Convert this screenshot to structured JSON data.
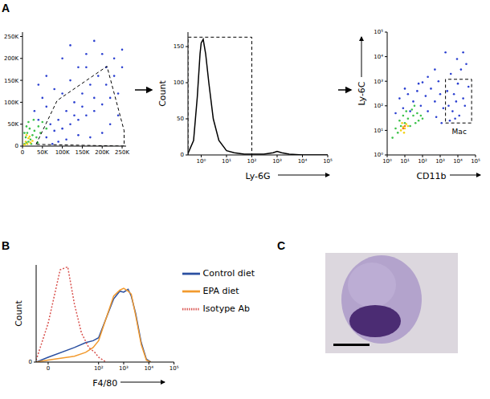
{
  "chart_data": [
    {
      "panel": "A",
      "type": "scatter",
      "xlim": [
        0,
        260000
      ],
      "ylim": [
        0,
        260000
      ],
      "xticks": [
        0,
        {
          "value": 50000,
          "label": "50K"
        },
        {
          "value": 100000,
          "label": "100K"
        },
        {
          "value": 150000,
          "label": "150K"
        },
        {
          "value": 200000,
          "label": "200K"
        },
        {
          "value": 250000,
          "label": "250K"
        }
      ],
      "yticks": [
        0,
        {
          "value": 50000,
          "label": "50K"
        },
        {
          "value": 100000,
          "label": "100K"
        },
        {
          "value": 150000,
          "label": "150K"
        },
        {
          "value": 200000,
          "label": "200K"
        },
        {
          "value": 250000,
          "label": "250K"
        }
      ],
      "series": [
        {
          "color": "#2a3fd0",
          "x": [
            60000,
            80000,
            100000,
            120000,
            140000,
            160000,
            180000,
            200000,
            220000,
            240000,
            90000,
            110000,
            130000,
            150000,
            170000,
            190000,
            210000,
            230000,
            250000,
            70000,
            100000,
            120000,
            140000,
            160000,
            180000,
            60000,
            80000,
            40000,
            50000,
            30000,
            200000,
            220000,
            240000,
            170000,
            140000,
            110000,
            90000,
            75000,
            150000,
            180000,
            210000,
            230000,
            250000,
            130000,
            100000,
            120000,
            60000,
            40000,
            160000,
            200000
          ],
          "values": [
            20000,
            35000,
            40000,
            50000,
            60000,
            70000,
            80000,
            95000,
            110000,
            120000,
            60000,
            80000,
            100000,
            120000,
            140000,
            160000,
            180000,
            200000,
            220000,
            50000,
            120000,
            150000,
            180000,
            210000,
            240000,
            90000,
            130000,
            60000,
            110000,
            80000,
            30000,
            50000,
            70000,
            20000,
            25000,
            15000,
            10000,
            5000,
            90000,
            110000,
            140000,
            160000,
            180000,
            70000,
            200000,
            230000,
            160000,
            140000,
            180000,
            210000
          ]
        },
        {
          "color": "#3cc24a",
          "x": [
            5000,
            10000,
            15000,
            8000,
            12000,
            20000,
            25000,
            18000,
            30000,
            35000,
            40000,
            28000,
            45000,
            50000,
            15000,
            60000,
            22000,
            38000,
            5000,
            10000
          ],
          "values": [
            5000,
            8000,
            10000,
            20000,
            30000,
            15000,
            25000,
            40000,
            35000,
            20000,
            45000,
            60000,
            30000,
            55000,
            55000,
            40000,
            5000,
            8000,
            30000,
            45000
          ]
        },
        {
          "color": "#f2d21a",
          "x": [
            5000,
            8000,
            12000,
            15000,
            20000,
            10000,
            25000,
            18000
          ],
          "values": [
            3000,
            10000,
            5000,
            18000,
            8000,
            25000,
            12000,
            22000
          ]
        },
        {
          "type": "line",
          "line_style": "dashed",
          "color": "#000000",
          "x": [
            34000,
            87000,
            212000,
            255000,
            255000,
            34000
          ],
          "values": [
            4000,
            104000,
            182000,
            35000,
            0,
            4000
          ]
        }
      ]
    },
    {
      "type": "line",
      "x_label": "Ly-6G",
      "y_label": "Count",
      "log": "x",
      "xlim": [
        0.3,
        100000
      ],
      "ylim": [
        0,
        170
      ],
      "xticks": [
        {
          "value": 1,
          "label": "10⁰"
        },
        {
          "value": 10,
          "label": "10¹"
        },
        {
          "value": 100,
          "label": "10²"
        },
        {
          "value": 1000,
          "label": "10³"
        },
        {
          "value": 10000,
          "label": "10⁴"
        },
        {
          "value": 100000,
          "label": "10⁵"
        }
      ],
      "yticks": [
        0,
        50,
        100,
        150
      ],
      "series": [
        {
          "color": "#000000",
          "x": [
            0.3,
            0.5,
            0.7,
            0.9,
            1,
            1.2,
            1.5,
            2,
            3,
            5,
            10,
            20,
            50,
            100,
            300,
            700,
            1000,
            1500,
            3000,
            10000,
            100000
          ],
          "values": [
            2,
            20,
            80,
            140,
            155,
            160,
            140,
            100,
            50,
            20,
            6,
            3,
            1,
            1,
            1,
            3,
            5,
            3,
            1,
            0,
            0
          ]
        },
        {
          "line_style": "dashed",
          "color": "#000000",
          "x": [
            0.3,
            0.3,
            100,
            100
          ],
          "values": [
            0,
            163,
            163,
            0
          ]
        }
      ]
    },
    {
      "type": "scatter",
      "x_label": "CD11b",
      "y_label": "Ly-6C",
      "log": true,
      "xlim": [
        1,
        100000
      ],
      "ylim": [
        1,
        100000
      ],
      "xticks": [
        {
          "value": 1,
          "label": "10⁰"
        },
        {
          "value": 10,
          "label": "10¹"
        },
        {
          "value": 100,
          "label": "10²"
        },
        {
          "value": 1000,
          "label": "10³"
        },
        {
          "value": 10000,
          "label": "10⁴"
        },
        {
          "value": 100000,
          "label": "10⁵"
        }
      ],
      "yticks": [
        {
          "value": 1,
          "label": "10⁰"
        },
        {
          "value": 10,
          "label": "10¹"
        },
        {
          "value": 100,
          "label": "10²"
        },
        {
          "value": 1000,
          "label": "10³"
        },
        {
          "value": 10000,
          "label": "10⁴"
        },
        {
          "value": 100000,
          "label": "10⁵"
        }
      ],
      "annotations": [
        {
          "text": "Mac",
          "x": 12000,
          "y": 9
        }
      ],
      "series": [
        {
          "color": "#2a3fd0",
          "x": [
            3,
            5,
            8,
            15,
            20,
            30,
            50,
            80,
            100,
            150,
            200,
            300,
            500,
            800,
            1000,
            1500,
            2500,
            3000,
            4000,
            5000,
            6000,
            8000,
            10000,
            12000,
            15000,
            20000,
            25000,
            30000,
            40000,
            2000,
            500,
            200,
            60,
            10,
            7000,
            3500,
            1200,
            600,
            20000,
            9000
          ],
          "values": [
            50,
            200,
            80,
            300,
            60,
            150,
            400,
            100,
            900,
            250,
            60,
            500,
            150,
            1000,
            300,
            80,
            400,
            100,
            2000,
            60,
            300,
            150,
            800,
            40,
            3000,
            200,
            100,
            5000,
            600,
            15000,
            3000,
            1500,
            800,
            500,
            30,
            25,
            20,
            35,
            15000,
            8000
          ]
        },
        {
          "color": "#3cc24a",
          "x": [
            4,
            6,
            10,
            15,
            20,
            8,
            30,
            40,
            25,
            50,
            60,
            12,
            5,
            80,
            100,
            3,
            2,
            35
          ],
          "values": [
            8,
            15,
            20,
            30,
            15,
            40,
            40,
            20,
            70,
            50,
            25,
            60,
            25,
            40,
            30,
            12,
            5,
            100
          ]
        },
        {
          "color": "#f2d21a",
          "x": [
            6,
            8,
            10,
            12,
            7,
            15,
            9
          ],
          "values": [
            10,
            14,
            12,
            18,
            20,
            15,
            8
          ]
        },
        {
          "color": "#f07020",
          "x": [
            8,
            10
          ],
          "values": [
            12,
            15
          ]
        },
        {
          "type": "line",
          "line_style": "dashed",
          "color": "#000000",
          "x": [
            2000,
            60000,
            60000,
            2000,
            2000
          ],
          "values": [
            20,
            20,
            1200,
            1200,
            20
          ]
        }
      ]
    },
    {
      "panel": "B",
      "type": "line",
      "x_label": "F4/80",
      "y_label": "Count",
      "log": "x",
      "legend": "right",
      "xlim": [
        -2,
        100000
      ],
      "ylim": [
        0,
        100
      ],
      "xticks": [
        0,
        {
          "value": 100,
          "label": "10²"
        },
        {
          "value": 1000,
          "label": "10³"
        },
        {
          "value": 10000,
          "label": "10⁴"
        },
        {
          "value": 100000,
          "label": "10⁵"
        }
      ],
      "yticks": [
        0
      ],
      "series": [
        {
          "name": "Control diet",
          "color": "#2a4fa0",
          "x": [
            -2,
            0,
            10,
            30,
            60,
            100,
            200,
            400,
            700,
            1000,
            1500,
            2000,
            3000,
            5000,
            8000,
            12000
          ],
          "values": [
            0,
            5,
            15,
            20,
            22,
            25,
            45,
            65,
            73,
            72,
            75,
            68,
            50,
            20,
            3,
            0
          ]
        },
        {
          "name": "EPA diet",
          "color": "#f29a2e",
          "x": [
            -2,
            0,
            10,
            30,
            60,
            100,
            200,
            400,
            700,
            1000,
            1500,
            2000,
            3000,
            5000,
            8000,
            12000
          ],
          "values": [
            0,
            2,
            6,
            10,
            15,
            22,
            45,
            68,
            74,
            76,
            73,
            70,
            48,
            18,
            2,
            0
          ]
        },
        {
          "name": "Isotype Ab",
          "color": "#d9534f",
          "line_style": "dotted",
          "x": [
            -2,
            0,
            2,
            5,
            10,
            20,
            40,
            70,
            100,
            200
          ],
          "values": [
            2,
            40,
            95,
            98,
            60,
            30,
            15,
            10,
            5,
            0
          ]
        }
      ]
    }
  ],
  "micrograph": {
    "panel": "C"
  }
}
